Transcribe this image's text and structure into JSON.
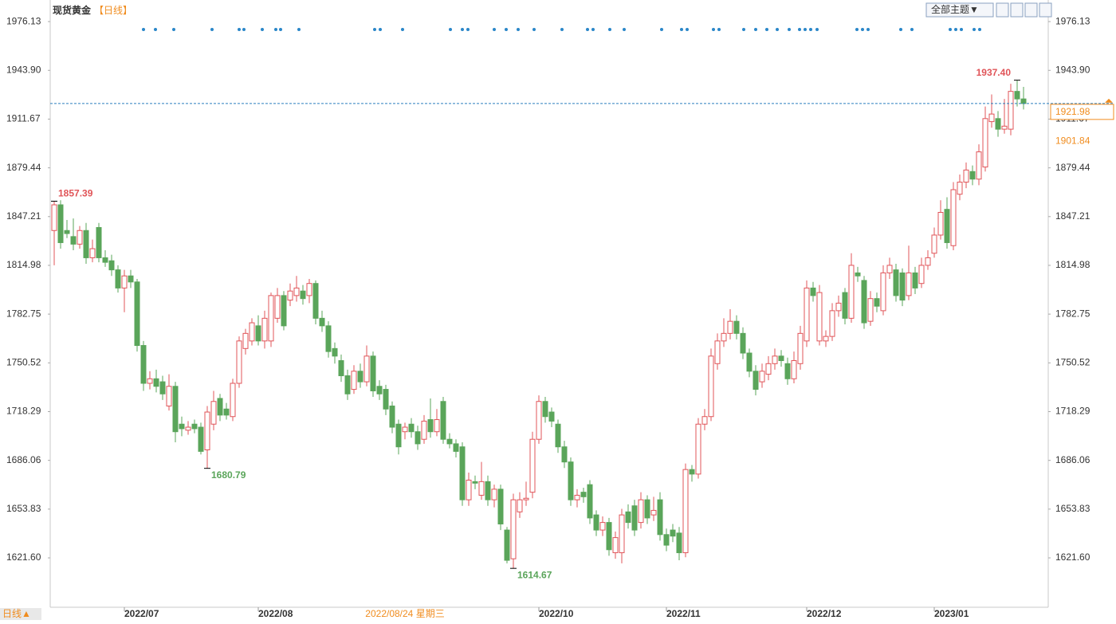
{
  "chart_data": {
    "type": "candlestick",
    "title": "现货黄金",
    "period": "【日线】",
    "theme_button": "全部主题▼",
    "period_toggle": "日线▲",
    "up_color": "#e05458",
    "down_color": "#5aa55a",
    "ylim": [
      1590,
      1990.4
    ],
    "yticks": [
      {
        "value": 1621.6,
        "label": "1621.60"
      },
      1653.83,
      1686.06,
      1718.29,
      1750.52,
      1782.75,
      1814.98,
      1847.21,
      1879.44,
      1911.67,
      {
        "value": 1943.9,
        "label": "1943.90"
      },
      1976.13
    ],
    "xticks": [
      {
        "value": 11,
        "label": "2022/07"
      },
      {
        "value": 32,
        "label": "2022/08"
      },
      {
        "value": 76,
        "label": "2022/10"
      },
      {
        "value": 96,
        "label": "2022/11"
      },
      {
        "value": 118,
        "label": "2022/12"
      },
      {
        "value": 138,
        "label": "2023/01"
      }
    ],
    "cursor": {
      "value": 55,
      "label": "2022/08/24 星期三"
    },
    "last_price": 1921.98,
    "ref_price": 1901.84,
    "annotations": [
      {
        "value": 1857.39,
        "label": "1857.39",
        "kind": "high"
      },
      {
        "value": 1680.79,
        "label": "1680.79",
        "kind": "low"
      },
      {
        "value": 1614.67,
        "label": "1614.67",
        "kind": "low"
      },
      {
        "value": 1937.4,
        "label": "1937.40",
        "kind": "high"
      }
    ],
    "candles": [
      [
        1838,
        1857.39,
        1815,
        1855
      ],
      [
        1855,
        1858,
        1826,
        1830
      ],
      [
        1838,
        1845,
        1833,
        1836
      ],
      [
        1834,
        1846,
        1825,
        1829
      ],
      [
        1829,
        1841,
        1826,
        1838
      ],
      [
        1838,
        1843,
        1816,
        1820
      ],
      [
        1820,
        1832,
        1817,
        1826
      ],
      [
        1840,
        1843,
        1817,
        1820
      ],
      [
        1820,
        1825,
        1814,
        1817
      ],
      [
        1818,
        1822,
        1808,
        1812
      ],
      [
        1812,
        1815,
        1797,
        1800
      ],
      [
        1800,
        1812,
        1784,
        1808
      ],
      [
        1808,
        1812,
        1800,
        1804
      ],
      [
        1804,
        1806,
        1758,
        1762
      ],
      [
        1762,
        1765,
        1732,
        1737
      ],
      [
        1737,
        1745,
        1733,
        1740
      ],
      [
        1740,
        1746,
        1731,
        1735
      ],
      [
        1738,
        1742,
        1726,
        1730
      ],
      [
        1722,
        1743,
        1719,
        1735
      ],
      [
        1735,
        1738,
        1698,
        1705
      ],
      [
        1710,
        1715,
        1702,
        1707
      ],
      [
        1706,
        1712,
        1703,
        1708
      ],
      [
        1710,
        1713,
        1704,
        1707
      ],
      [
        1708,
        1711,
        1690,
        1692
      ],
      [
        1693,
        1722,
        1680.79,
        1718
      ],
      [
        1710,
        1732,
        1706,
        1725
      ],
      [
        1727,
        1730,
        1712,
        1716
      ],
      [
        1720,
        1724,
        1713,
        1716
      ],
      [
        1715,
        1740,
        1712,
        1737
      ],
      [
        1737,
        1768,
        1734,
        1765
      ],
      [
        1760,
        1773,
        1756,
        1770
      ],
      [
        1765,
        1780,
        1762,
        1777
      ],
      [
        1775,
        1782,
        1762,
        1765
      ],
      [
        1765,
        1785,
        1760,
        1780
      ],
      [
        1765,
        1797,
        1761,
        1795
      ],
      [
        1780,
        1800,
        1777,
        1795
      ],
      [
        1795,
        1798,
        1772,
        1775
      ],
      [
        1792,
        1803,
        1788,
        1798
      ],
      [
        1795,
        1808,
        1791,
        1800
      ],
      [
        1798,
        1802,
        1789,
        1793
      ],
      [
        1795,
        1806,
        1790,
        1803
      ],
      [
        1803,
        1805,
        1776,
        1780
      ],
      [
        1780,
        1785,
        1771,
        1775
      ],
      [
        1775,
        1778,
        1754,
        1758
      ],
      [
        1760,
        1764,
        1750,
        1755
      ],
      [
        1752,
        1756,
        1738,
        1742
      ],
      [
        1742,
        1746,
        1726,
        1730
      ],
      [
        1733,
        1749,
        1730,
        1745
      ],
      [
        1745,
        1750,
        1734,
        1738
      ],
      [
        1738,
        1762,
        1735,
        1755
      ],
      [
        1755,
        1758,
        1728,
        1732
      ],
      [
        1735,
        1739,
        1726,
        1730
      ],
      [
        1733,
        1736,
        1716,
        1720
      ],
      [
        1722,
        1725,
        1704,
        1708
      ],
      [
        1710,
        1713,
        1690,
        1695
      ],
      [
        1705,
        1711,
        1700,
        1708
      ],
      [
        1710,
        1714,
        1701,
        1705
      ],
      [
        1705,
        1709,
        1693,
        1697
      ],
      [
        1700,
        1716,
        1697,
        1712
      ],
      [
        1713,
        1727,
        1701,
        1705
      ],
      [
        1705,
        1720,
        1702,
        1713
      ],
      [
        1725,
        1728,
        1697,
        1700
      ],
      [
        1700,
        1704,
        1694,
        1697
      ],
      [
        1697,
        1700,
        1688,
        1692
      ],
      [
        1695,
        1698,
        1656,
        1660
      ],
      [
        1660,
        1678,
        1656,
        1673
      ],
      [
        1672,
        1676,
        1667,
        1671
      ],
      [
        1663,
        1685,
        1660,
        1672
      ],
      [
        1672,
        1676,
        1656,
        1660
      ],
      [
        1660,
        1670,
        1655,
        1667
      ],
      [
        1667,
        1670,
        1640,
        1644
      ],
      [
        1640,
        1642,
        1618,
        1620
      ],
      [
        1621,
        1664,
        1614.67,
        1660
      ],
      [
        1652,
        1665,
        1648,
        1660
      ],
      [
        1660,
        1672,
        1656,
        1661
      ],
      [
        1665,
        1705,
        1661,
        1700
      ],
      [
        1700,
        1729,
        1697,
        1725
      ],
      [
        1725,
        1728,
        1711,
        1715
      ],
      [
        1718,
        1721,
        1708,
        1712
      ],
      [
        1710,
        1713,
        1691,
        1695
      ],
      [
        1695,
        1699,
        1681,
        1685
      ],
      [
        1685,
        1688,
        1656,
        1660
      ],
      [
        1660,
        1667,
        1655,
        1663
      ],
      [
        1665,
        1668,
        1658,
        1662
      ],
      [
        1670,
        1673,
        1644,
        1648
      ],
      [
        1650,
        1653,
        1636,
        1640
      ],
      [
        1640,
        1649,
        1636,
        1645
      ],
      [
        1645,
        1648,
        1623,
        1627
      ],
      [
        1625,
        1639,
        1621,
        1635
      ],
      [
        1625,
        1654,
        1618,
        1650
      ],
      [
        1652,
        1657,
        1641,
        1645
      ],
      [
        1656,
        1660,
        1636,
        1640
      ],
      [
        1645,
        1665,
        1641,
        1660
      ],
      [
        1660,
        1663,
        1644,
        1648
      ],
      [
        1650,
        1662,
        1646,
        1653
      ],
      [
        1660,
        1665,
        1633,
        1637
      ],
      [
        1637,
        1641,
        1626,
        1630
      ],
      [
        1640,
        1644,
        1632,
        1636
      ],
      [
        1638,
        1642,
        1620,
        1625
      ],
      [
        1625,
        1684,
        1622,
        1680
      ],
      [
        1680,
        1683,
        1672,
        1677
      ],
      [
        1677,
        1714,
        1674,
        1710
      ],
      [
        1710,
        1720,
        1706,
        1715
      ],
      [
        1715,
        1760,
        1712,
        1755
      ],
      [
        1750,
        1770,
        1746,
        1765
      ],
      [
        1765,
        1780,
        1761,
        1770
      ],
      [
        1770,
        1786,
        1766,
        1778
      ],
      [
        1778,
        1782,
        1766,
        1770
      ],
      [
        1770,
        1774,
        1753,
        1757
      ],
      [
        1757,
        1760,
        1741,
        1745
      ],
      [
        1745,
        1749,
        1729,
        1733
      ],
      [
        1738,
        1750,
        1734,
        1745
      ],
      [
        1743,
        1755,
        1739,
        1750
      ],
      [
        1750,
        1760,
        1746,
        1755
      ],
      [
        1755,
        1759,
        1748,
        1752
      ],
      [
        1750,
        1754,
        1736,
        1740
      ],
      [
        1740,
        1758,
        1737,
        1752
      ],
      [
        1750,
        1775,
        1746,
        1770
      ],
      [
        1765,
        1805,
        1761,
        1800
      ],
      [
        1800,
        1804,
        1791,
        1795
      ],
      [
        1765,
        1802,
        1762,
        1797
      ],
      [
        1765,
        1772,
        1761,
        1768
      ],
      [
        1768,
        1790,
        1765,
        1785
      ],
      [
        1785,
        1795,
        1781,
        1790
      ],
      [
        1797,
        1800,
        1776,
        1780
      ],
      [
        1780,
        1823,
        1777,
        1815
      ],
      [
        1810,
        1814,
        1804,
        1808
      ],
      [
        1805,
        1808,
        1773,
        1777
      ],
      [
        1778,
        1798,
        1775,
        1793
      ],
      [
        1793,
        1797,
        1784,
        1788
      ],
      [
        1785,
        1815,
        1782,
        1810
      ],
      [
        1810,
        1820,
        1806,
        1815
      ],
      [
        1812,
        1816,
        1791,
        1795
      ],
      [
        1810,
        1813,
        1788,
        1792
      ],
      [
        1795,
        1828,
        1792,
        1810
      ],
      [
        1810,
        1814,
        1796,
        1800
      ],
      [
        1803,
        1820,
        1800,
        1815
      ],
      [
        1815,
        1825,
        1812,
        1820
      ],
      [
        1823,
        1840,
        1820,
        1835
      ],
      [
        1835,
        1858,
        1832,
        1850
      ],
      [
        1852,
        1860,
        1826,
        1830
      ],
      [
        1828,
        1870,
        1825,
        1865
      ],
      [
        1862,
        1875,
        1858,
        1870
      ],
      [
        1870,
        1883,
        1866,
        1878
      ],
      [
        1877,
        1881,
        1868,
        1872
      ],
      [
        1872,
        1895,
        1868,
        1890
      ],
      [
        1880,
        1920,
        1877,
        1912
      ],
      [
        1910,
        1928,
        1906,
        1915
      ],
      [
        1912,
        1917,
        1900,
        1905
      ],
      [
        1905,
        1925,
        1902,
        1907
      ],
      [
        1905,
        1935,
        1901,
        1930
      ],
      [
        1930,
        1937.4,
        1920,
        1925
      ],
      [
        1925,
        1933,
        1918,
        1921.98
      ]
    ]
  }
}
